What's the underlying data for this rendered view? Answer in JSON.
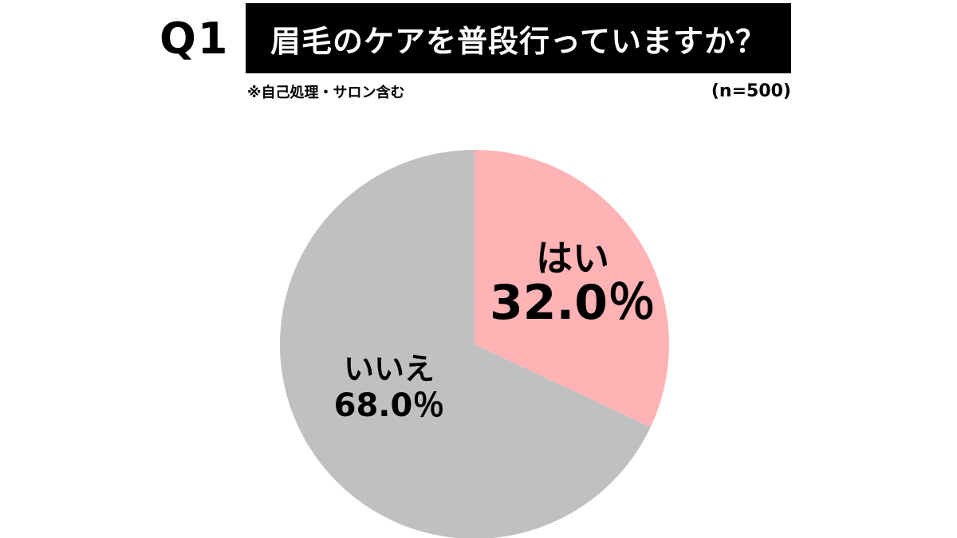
{
  "header": {
    "question_number": "Q1",
    "title": "眉毛のケアを普段行っていますか？",
    "note": "※自己処理・サロン含む",
    "sample_size": "(n=500)"
  },
  "colors": {
    "yes": "#ffb3b5",
    "no": "#c0c0c0",
    "title_bg": "#000000"
  },
  "chart_data": {
    "type": "pie",
    "title": "眉毛のケアを普段行っていますか？",
    "start": "12 o'clock",
    "direction": "clockwise",
    "slices": [
      {
        "label": "はい",
        "value": 32.0,
        "value_label": "32.0％",
        "color": "#ffb3b5"
      },
      {
        "label": "いいえ",
        "value": 68.0,
        "value_label": "68.0％",
        "color": "#c0c0c0"
      }
    ]
  }
}
